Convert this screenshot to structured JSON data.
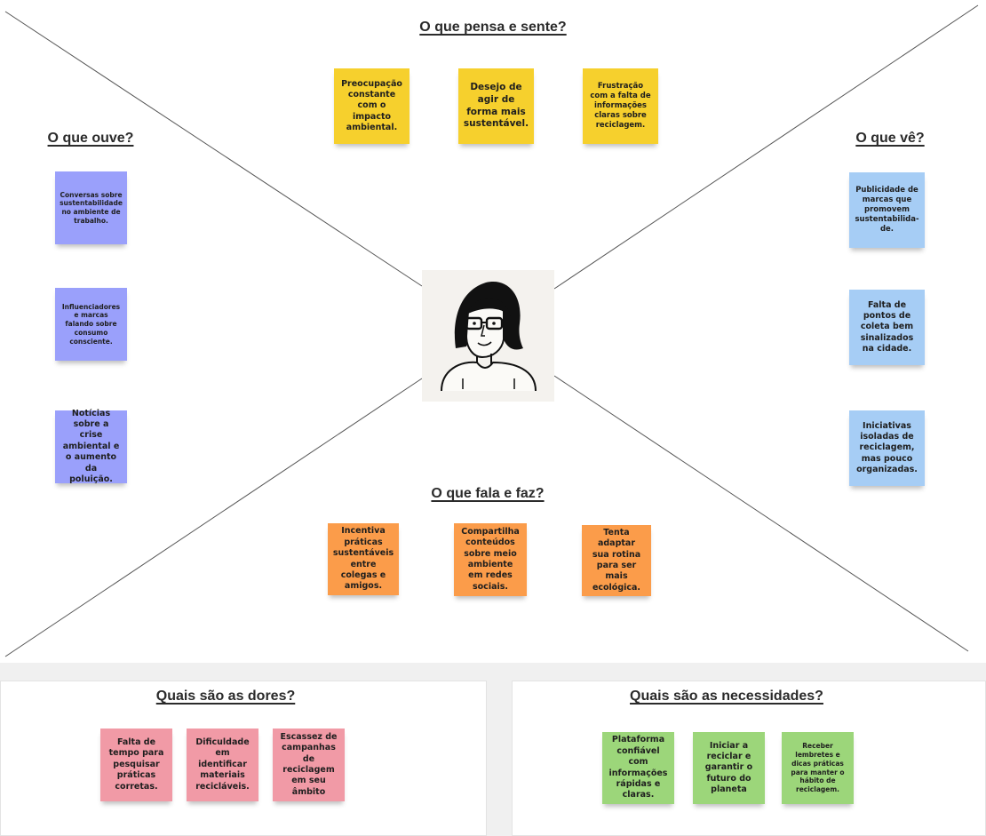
{
  "main": {
    "think_feel": {
      "title": "O que pensa e sente?",
      "notes": [
        "Preocupação constante com o impacto ambiental.",
        "Desejo de agir de forma mais sustentável.",
        "Frustração com a falta de informações claras sobre reciclagem."
      ]
    },
    "hear": {
      "title": "O que ouve?",
      "notes": [
        "Conversas sobre sustentabilidade no ambiente de trabalho.",
        "Influenciadores e marcas falando sobre consumo consciente.",
        "Notícias sobre a crise ambiental e o aumento da poluição."
      ]
    },
    "see": {
      "title": "O que vê?",
      "notes": [
        "Publicidade de marcas que promovem sustentabilida-de.",
        "Falta de pontos de coleta bem sinalizados na cidade.",
        "Iniciativas isoladas de reciclagem, mas pouco organizadas."
      ]
    },
    "say_do": {
      "title": "O que fala e faz?",
      "notes": [
        "Incentiva práticas sustentáveis entre colegas e amigos.",
        "Compartilha conteúdos sobre meio ambiente em redes sociais.",
        "Tenta adaptar sua rotina para ser mais ecológica."
      ]
    },
    "persona": {
      "icon": "persona-avatar-icon"
    }
  },
  "pains": {
    "title": "Quais são as dores?",
    "notes": [
      "Falta de tempo para pesquisar práticas corretas.",
      "Dificuldade em identificar materiais recicláveis.",
      "Escassez de campanhas de reciclagem em seu âmbito"
    ]
  },
  "needs": {
    "title": "Quais são as necessidades?",
    "notes": [
      "Plataforma confiável com informações rápidas e claras.",
      "Iniciar a reciclar e garantir o futuro do planeta",
      "Receber lembretes e dicas práticas para manter o hábito de reciclagem."
    ]
  },
  "colors": {
    "yellow": "#f6d02d",
    "blue_violet": "#9aa0fb",
    "light_blue": "#a6cdf5",
    "orange": "#fb9c4a",
    "pink": "#f19aa6",
    "green": "#9cd67a"
  }
}
